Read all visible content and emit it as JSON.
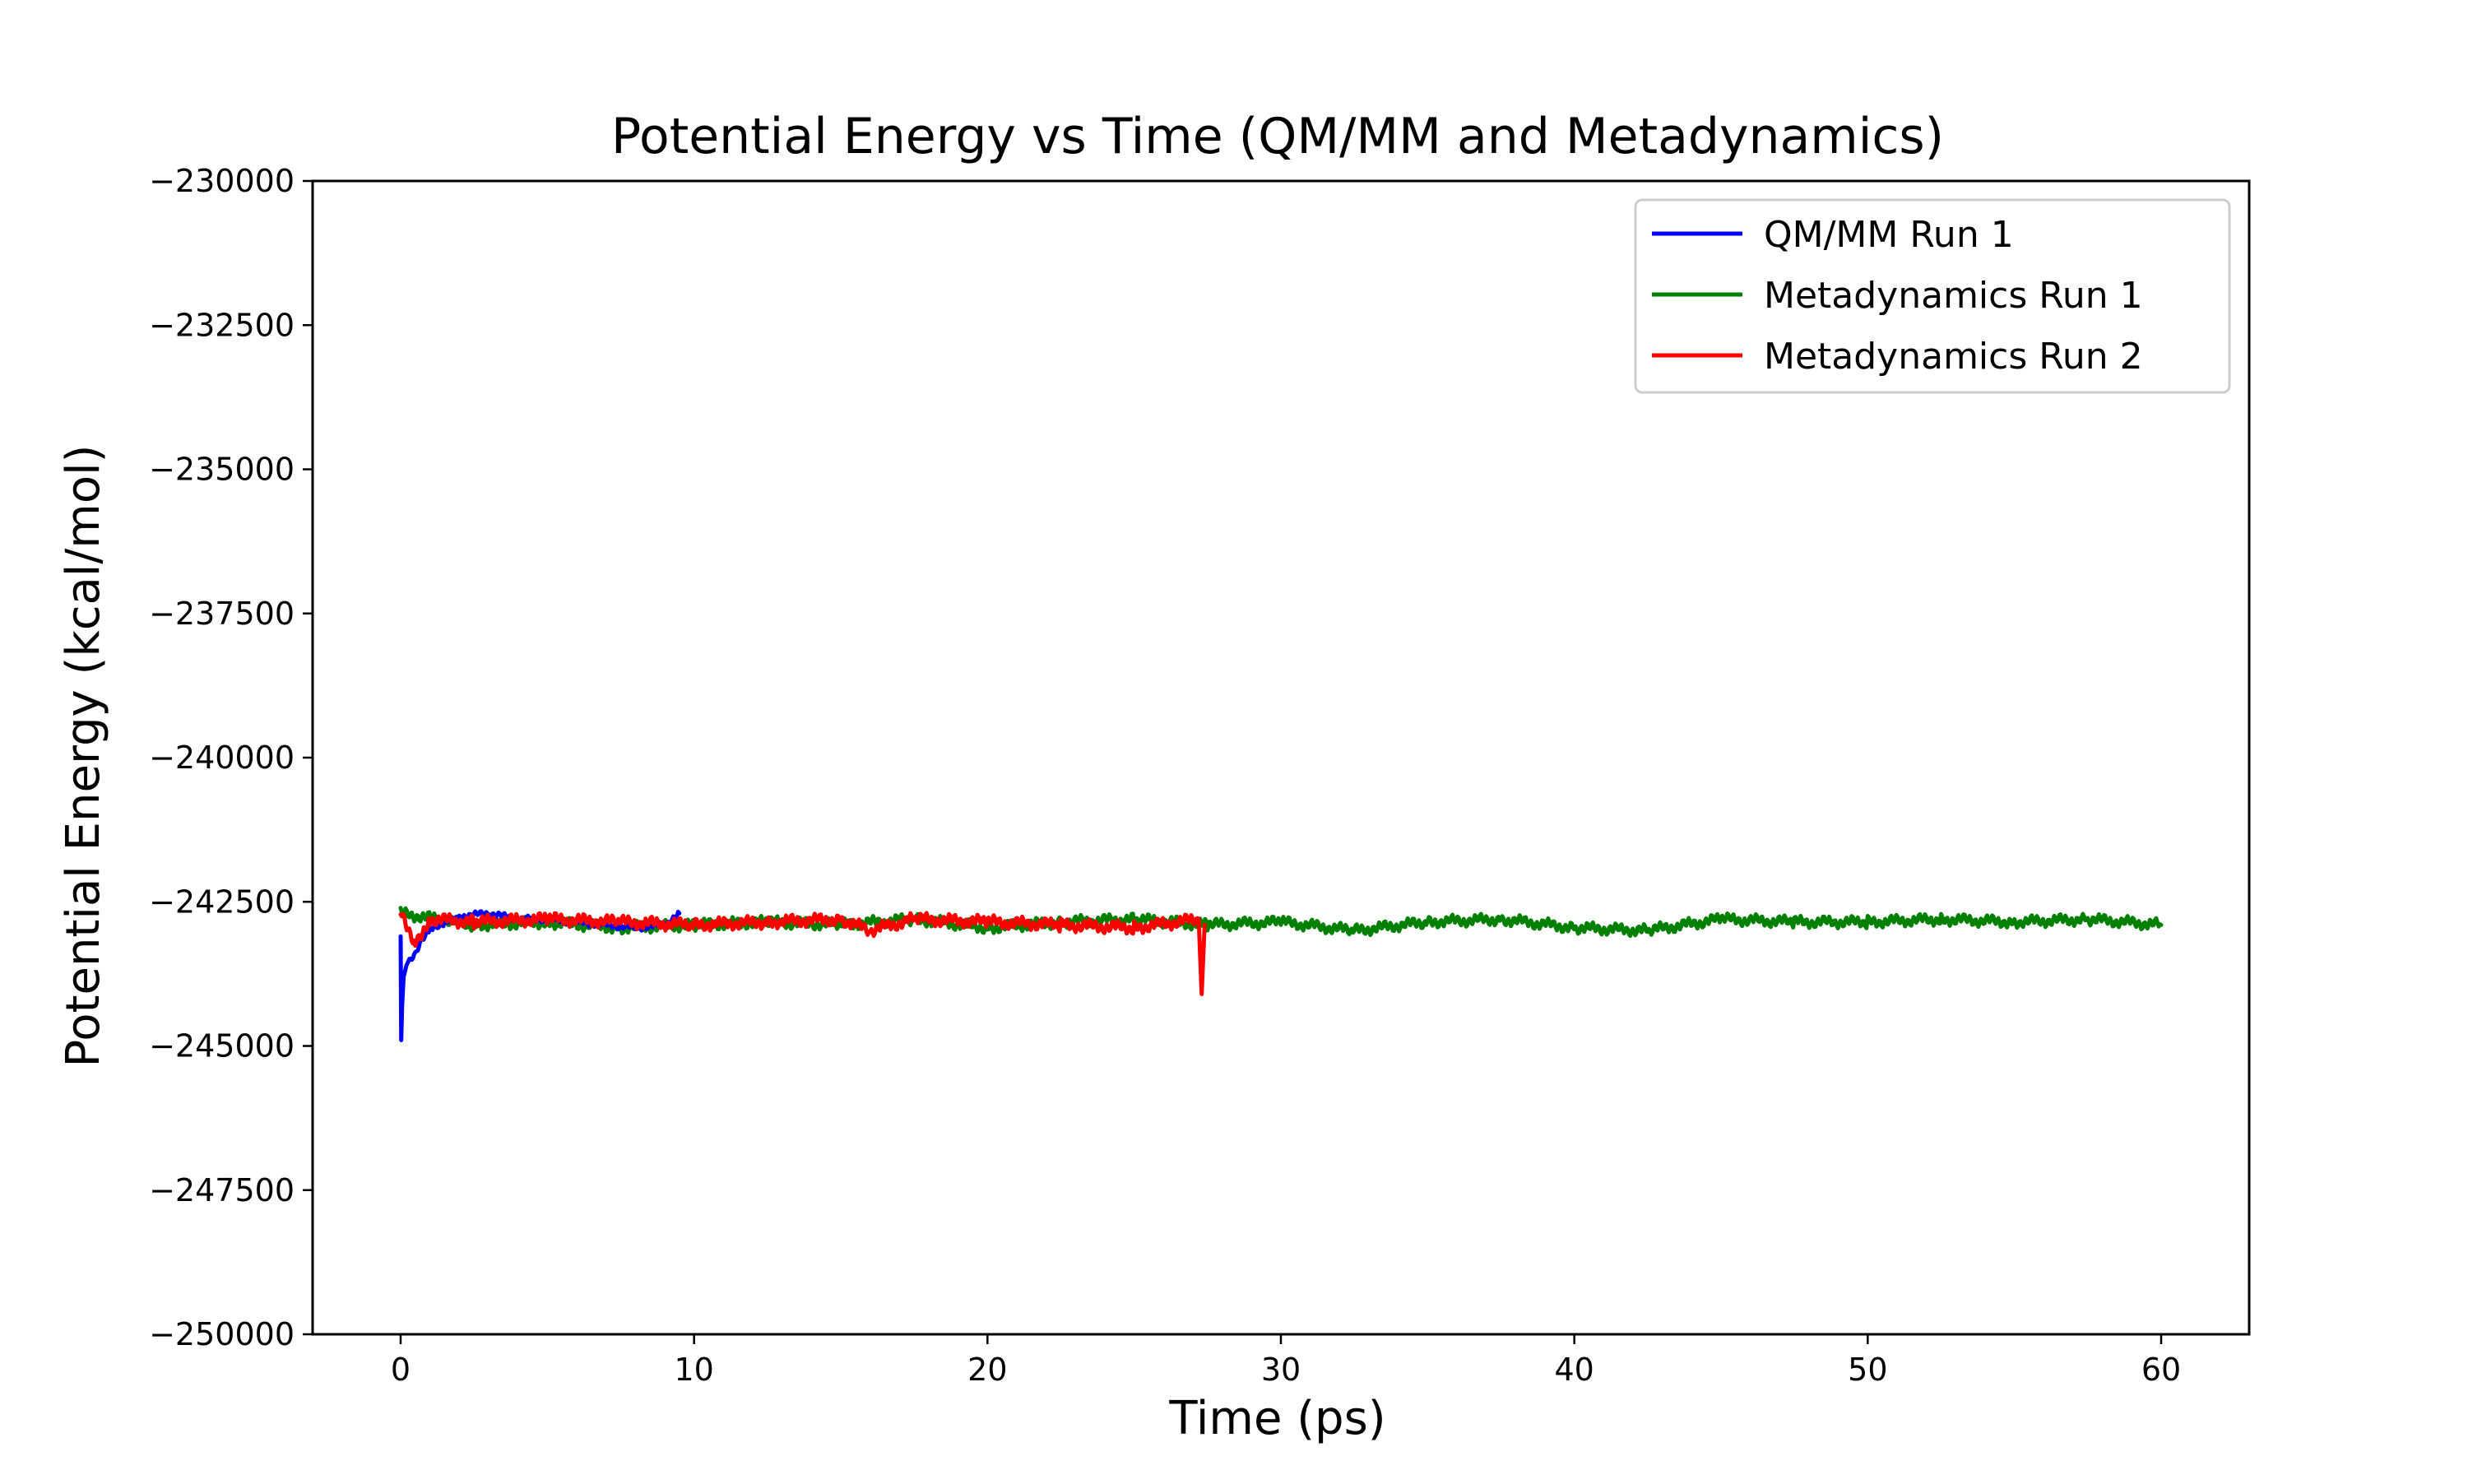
{
  "chart_data": {
    "type": "line",
    "title": "Potential Energy vs Time (QM/MM and Metadynamics)",
    "xlabel": "Time (ps)",
    "ylabel": "Potential Energy (kcal/mol)",
    "xlim": [
      -3,
      63
    ],
    "ylim": [
      -250000,
      -230000
    ],
    "xticks": [
      0,
      10,
      20,
      30,
      40,
      50,
      60
    ],
    "xtick_labels": [
      "0",
      "10",
      "20",
      "30",
      "40",
      "50",
      "60"
    ],
    "yticks": [
      -250000,
      -247500,
      -245000,
      -242500,
      -240000,
      -237500,
      -235000,
      -232500,
      -230000
    ],
    "ytick_labels": [
      "−250000",
      "−247500",
      "−245000",
      "−242500",
      "−240000",
      "−237500",
      "−235000",
      "−232500",
      "−230000"
    ],
    "grid": false,
    "legend_position": "top-right",
    "series": [
      {
        "name": "QM/MM Run 1",
        "color": "#0000ff",
        "x": [
          0.0,
          0.02,
          0.05,
          0.1,
          0.2,
          0.3,
          0.5,
          0.7,
          1.0,
          1.5,
          2.0,
          3.0,
          4.0,
          5.0,
          6.0,
          7.0,
          8.0,
          9.0,
          9.5
        ],
        "y": [
          -243100,
          -244900,
          -244300,
          -243800,
          -243600,
          -243500,
          -243400,
          -243200,
          -243000,
          -242850,
          -242750,
          -242700,
          -242800,
          -242800,
          -242850,
          -242900,
          -242950,
          -242900,
          -242700
        ]
      },
      {
        "name": "Metadynamics Run 1",
        "color": "#008000",
        "x": [
          0,
          2.5,
          5,
          7.5,
          10,
          12.5,
          15,
          17.5,
          20,
          22.5,
          25,
          27.5,
          30,
          32.5,
          35,
          37.5,
          40,
          42.5,
          45,
          47.5,
          50,
          52.5,
          55,
          57.5,
          60
        ],
        "y": [
          -242700,
          -242900,
          -242850,
          -242950,
          -242900,
          -242850,
          -242900,
          -242800,
          -242950,
          -242850,
          -242800,
          -242900,
          -242850,
          -243000,
          -242850,
          -242800,
          -242950,
          -243000,
          -242800,
          -242850,
          -242850,
          -242800,
          -242850,
          -242800,
          -242900
        ]
      },
      {
        "name": "Metadynamics Run 2",
        "color": "#ff0000",
        "x": [
          0,
          0.5,
          1.0,
          2.5,
          5,
          7.5,
          10,
          12.5,
          15,
          16,
          17.5,
          20,
          22.5,
          25,
          27.2,
          27.3,
          27.4
        ],
        "y": [
          -242700,
          -243200,
          -242800,
          -242850,
          -242800,
          -242850,
          -242900,
          -242850,
          -242800,
          -243000,
          -242800,
          -242850,
          -242900,
          -242950,
          -242800,
          -244100,
          -242900
        ]
      }
    ]
  }
}
